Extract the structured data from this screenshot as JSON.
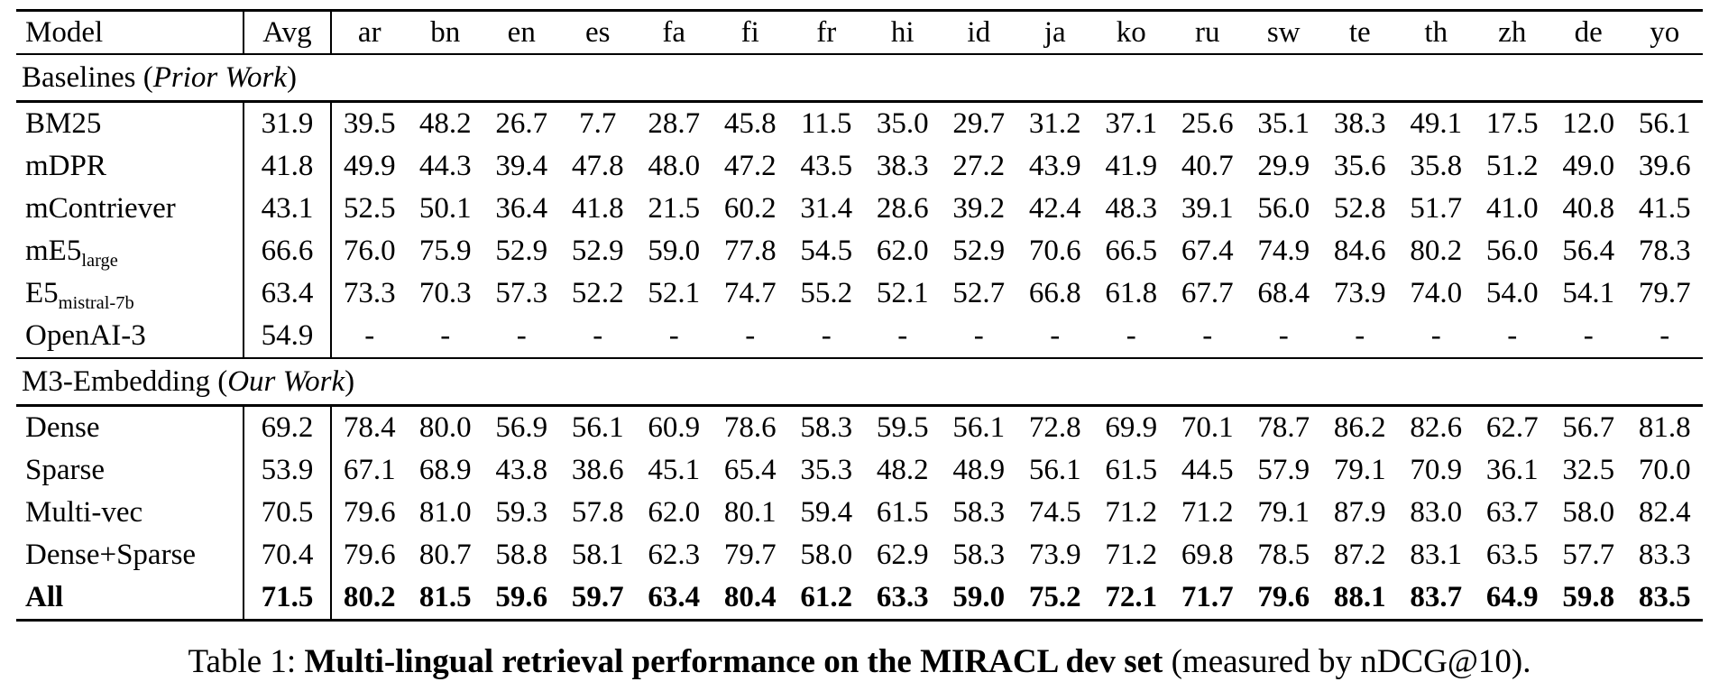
{
  "page": {
    "background": "#ffffff",
    "text_color": "#000000"
  },
  "caption": {
    "prefix": "Table 1: ",
    "bold": "Multi-lingual retrieval performance on the MIRACL dev set",
    "suffix": " (measured by nDCG@10)."
  },
  "table": {
    "type": "table",
    "columns": [
      "Model",
      "Avg",
      "ar",
      "bn",
      "en",
      "es",
      "fa",
      "fi",
      "fr",
      "hi",
      "id",
      "ja",
      "ko",
      "ru",
      "sw",
      "te",
      "th",
      "zh",
      "de",
      "yo"
    ],
    "rows": [
      {
        "type": "section",
        "prefix": "Baselines (",
        "italic": "Prior Work",
        "suffix": ")"
      },
      {
        "type": "data",
        "model": "BM25",
        "avg": "31.9",
        "values": [
          "39.5",
          "48.2",
          "26.7",
          "7.7",
          "28.7",
          "45.8",
          "11.5",
          "35.0",
          "29.7",
          "31.2",
          "37.1",
          "25.6",
          "35.1",
          "38.3",
          "49.1",
          "17.5",
          "12.0",
          "56.1"
        ]
      },
      {
        "type": "data",
        "model": "mDPR",
        "avg": "41.8",
        "values": [
          "49.9",
          "44.3",
          "39.4",
          "47.8",
          "48.0",
          "47.2",
          "43.5",
          "38.3",
          "27.2",
          "43.9",
          "41.9",
          "40.7",
          "29.9",
          "35.6",
          "35.8",
          "51.2",
          "49.0",
          "39.6"
        ]
      },
      {
        "type": "data",
        "model": "mContriever",
        "avg": "43.1",
        "values": [
          "52.5",
          "50.1",
          "36.4",
          "41.8",
          "21.5",
          "60.2",
          "31.4",
          "28.6",
          "39.2",
          "42.4",
          "48.3",
          "39.1",
          "56.0",
          "52.8",
          "51.7",
          "41.0",
          "40.8",
          "41.5"
        ]
      },
      {
        "type": "data",
        "model": "mE5",
        "model_sub": "large",
        "avg": "66.6",
        "values": [
          "76.0",
          "75.9",
          "52.9",
          "52.9",
          "59.0",
          "77.8",
          "54.5",
          "62.0",
          "52.9",
          "70.6",
          "66.5",
          "67.4",
          "74.9",
          "84.6",
          "80.2",
          "56.0",
          "56.4",
          "78.3"
        ]
      },
      {
        "type": "data",
        "model": "E5",
        "model_sub": "mistral-7b",
        "avg": "63.4",
        "values": [
          "73.3",
          "70.3",
          "57.3",
          "52.2",
          "52.1",
          "74.7",
          "55.2",
          "52.1",
          "52.7",
          "66.8",
          "61.8",
          "67.7",
          "68.4",
          "73.9",
          "74.0",
          "54.0",
          "54.1",
          "79.7"
        ]
      },
      {
        "type": "data",
        "model": "OpenAI-3",
        "avg": "54.9",
        "values": [
          "-",
          "-",
          "-",
          "-",
          "-",
          "-",
          "-",
          "-",
          "-",
          "-",
          "-",
          "-",
          "-",
          "-",
          "-",
          "-",
          "-",
          "-"
        ]
      },
      {
        "type": "section",
        "prefix": "M3-Embedding (",
        "italic": "Our Work",
        "suffix": ")"
      },
      {
        "type": "data",
        "model": "Dense",
        "avg": "69.2",
        "values": [
          "78.4",
          "80.0",
          "56.9",
          "56.1",
          "60.9",
          "78.6",
          "58.3",
          "59.5",
          "56.1",
          "72.8",
          "69.9",
          "70.1",
          "78.7",
          "86.2",
          "82.6",
          "62.7",
          "56.7",
          "81.8"
        ]
      },
      {
        "type": "data",
        "model": "Sparse",
        "avg": "53.9",
        "values": [
          "67.1",
          "68.9",
          "43.8",
          "38.6",
          "45.1",
          "65.4",
          "35.3",
          "48.2",
          "48.9",
          "56.1",
          "61.5",
          "44.5",
          "57.9",
          "79.1",
          "70.9",
          "36.1",
          "32.5",
          "70.0"
        ]
      },
      {
        "type": "data",
        "model": "Multi-vec",
        "avg": "70.5",
        "values": [
          "79.6",
          "81.0",
          "59.3",
          "57.8",
          "62.0",
          "80.1",
          "59.4",
          "61.5",
          "58.3",
          "74.5",
          "71.2",
          "71.2",
          "79.1",
          "87.9",
          "83.0",
          "63.7",
          "58.0",
          "82.4"
        ]
      },
      {
        "type": "data",
        "model": "Dense+Sparse",
        "avg": "70.4",
        "values": [
          "79.6",
          "80.7",
          "58.8",
          "58.1",
          "62.3",
          "79.7",
          "58.0",
          "62.9",
          "58.3",
          "73.9",
          "71.2",
          "69.8",
          "78.5",
          "87.2",
          "83.1",
          "63.5",
          "57.7",
          "83.3"
        ]
      },
      {
        "type": "data",
        "model": "All",
        "bold": true,
        "avg": "71.5",
        "values": [
          "80.2",
          "81.5",
          "59.6",
          "59.7",
          "63.4",
          "80.4",
          "61.2",
          "63.3",
          "59.0",
          "75.2",
          "72.1",
          "71.7",
          "79.6",
          "88.1",
          "83.7",
          "64.9",
          "59.8",
          "83.5"
        ]
      }
    ]
  }
}
